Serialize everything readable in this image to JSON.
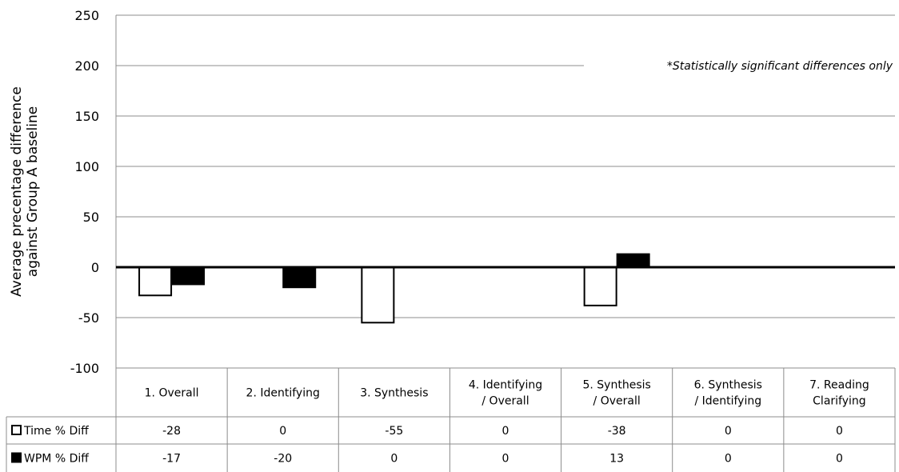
{
  "chart_data": {
    "type": "bar",
    "ylabel": "Average precentage difference against Group A baseline",
    "ylim": [
      -100,
      250
    ],
    "yticks": [
      250,
      200,
      150,
      100,
      50,
      0,
      -50,
      -100
    ],
    "grid": true,
    "note": "*Statistically significant differences only",
    "categories": [
      [
        "1. Overall"
      ],
      [
        "2. Identifying"
      ],
      [
        "3. Synthesis"
      ],
      [
        "4. Identifying",
        "/ Overall"
      ],
      [
        "5. Synthesis",
        "/ Overall"
      ],
      [
        "6. Synthesis",
        "/ Identifying"
      ],
      [
        "7. Reading",
        "Clarifying"
      ]
    ],
    "series": [
      {
        "name": "Time % Diff",
        "fill": "#ffffff",
        "stroke": "#000000",
        "values": [
          -28,
          0,
          -55,
          0,
          -38,
          0,
          0
        ]
      },
      {
        "name": "WPM % Diff",
        "fill": "#000000",
        "stroke": "#000000",
        "values": [
          -17,
          -20,
          0,
          0,
          13,
          0,
          0
        ]
      }
    ]
  }
}
